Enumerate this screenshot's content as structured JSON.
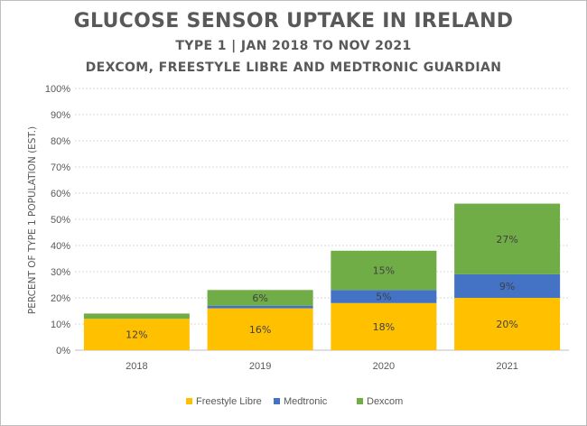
{
  "chart_data": {
    "type": "bar",
    "stacked": true,
    "title": "GLUCOSE SENSOR UPTAKE IN IRELAND",
    "subtitle": [
      "TYPE 1 | JAN 2018 TO NOV 2021",
      "DEXCOM, FREESTYLE LIBRE AND MEDTRONIC GUARDIAN"
    ],
    "ylabel": "PERCENT OF TYPE 1 POPULATION (EST.)",
    "xlabel": "",
    "categories": [
      "2018",
      "2019",
      "2020",
      "2021"
    ],
    "ylim": [
      0,
      100
    ],
    "yticks": [
      "0%",
      "10%",
      "20%",
      "30%",
      "40%",
      "50%",
      "60%",
      "70%",
      "80%",
      "90%",
      "100%"
    ],
    "series": [
      {
        "name": "Freestyle Libre",
        "color": "#ffc000",
        "values": [
          12,
          16,
          18,
          20
        ],
        "labels": [
          "12%",
          "16%",
          "18%",
          "20%"
        ]
      },
      {
        "name": "Medtronic",
        "color": "#4472c4",
        "values": [
          0,
          1,
          5,
          9
        ],
        "labels": [
          "",
          "",
          "5%",
          "9%"
        ]
      },
      {
        "name": "Dexcom",
        "color": "#70ad47",
        "values": [
          2,
          6,
          15,
          27
        ],
        "labels": [
          "",
          "6%",
          "15%",
          "27%"
        ]
      }
    ],
    "grid": true,
    "legend": "bottom"
  }
}
